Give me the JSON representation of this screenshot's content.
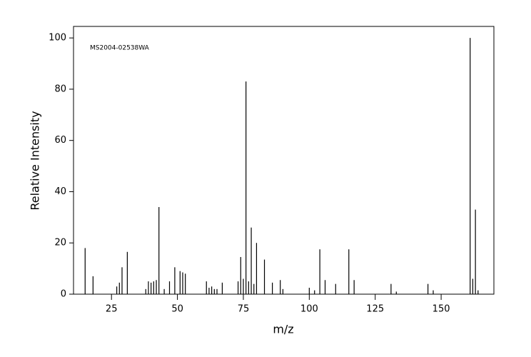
{
  "chart_data": {
    "type": "stem",
    "annotation": "MS2004-02538WA",
    "x_label": "m/z",
    "y_label": "Relative Intensity",
    "x": [
      15,
      18,
      27,
      28,
      29,
      31,
      38,
      39,
      40,
      41,
      42,
      43,
      45,
      47,
      49,
      51,
      52,
      53,
      61,
      62,
      63,
      64,
      65,
      67,
      73,
      74,
      75,
      76,
      77,
      78,
      79,
      80,
      83,
      86,
      89,
      90,
      100,
      102,
      104,
      106,
      110,
      115,
      117,
      131,
      133,
      145,
      147,
      161,
      162,
      163,
      164
    ],
    "values": [
      18,
      7,
      3,
      4.5,
      10.5,
      16.5,
      2,
      5,
      4.5,
      5,
      5.5,
      34,
      2,
      5,
      10.5,
      9,
      8.5,
      8,
      5,
      2.5,
      3,
      2,
      2,
      4.5,
      5,
      14.5,
      6,
      83,
      5,
      26,
      4,
      20,
      13.5,
      4.5,
      5.5,
      2,
      2.5,
      1.5,
      17.5,
      5.5,
      4,
      17.5,
      5.5,
      4,
      1,
      4,
      1.5,
      100,
      6,
      33,
      1.5
    ],
    "color": "#000000",
    "xlim": [
      10.6,
      170
    ],
    "ylim": [
      0,
      104.5
    ],
    "xticks": [
      25,
      50,
      75,
      100,
      125,
      150
    ],
    "yticks": [
      0,
      20,
      40,
      60,
      80,
      100
    ]
  }
}
